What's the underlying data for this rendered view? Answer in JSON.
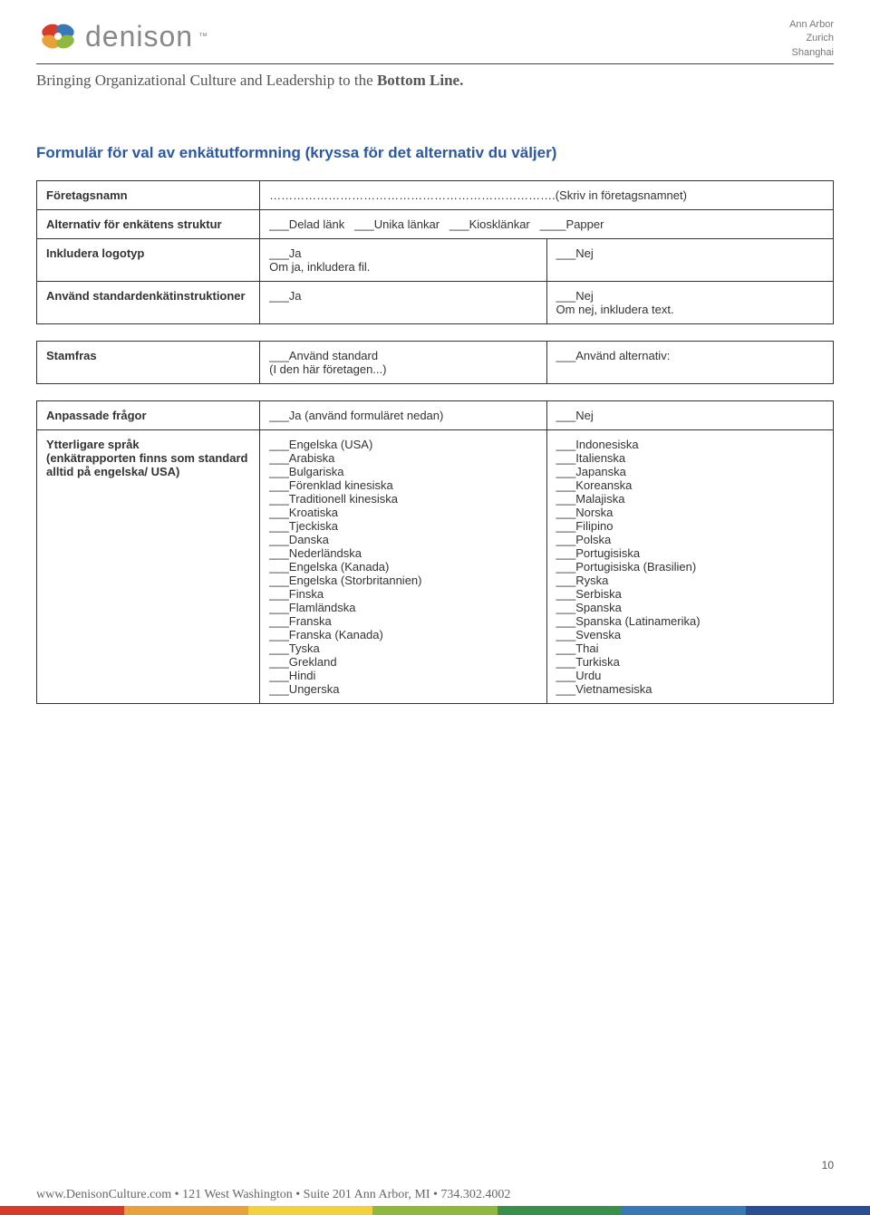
{
  "header": {
    "brand": "denison",
    "locations": [
      "Ann Arbor",
      "Zurich",
      "Shanghai"
    ],
    "tagline_prefix": "Bringing Organizational Culture and Leadership to the ",
    "tagline_bold": "Bottom Line."
  },
  "title": "Formulär för val av enkätutformning (kryssa för det alternativ du väljer)",
  "rows": {
    "company_label": "Företagsnamn",
    "company_value": "……………………………………………………………….(Skriv in företagsnamnet)",
    "struct_label": "Alternativ för enkätens struktur",
    "struct_opts": [
      "___Delad länk",
      "___Unika länkar",
      "___Kiosklänkar",
      "____Papper"
    ],
    "logo_label": "Inkludera logotyp",
    "logo_yes": "___Ja",
    "logo_yes_sub": "Om ja, inkludera fil.",
    "logo_no": "___Nej",
    "instr_label": "Använd standardenkätinstruktioner",
    "instr_yes": "___Ja",
    "instr_no": "___Nej",
    "instr_no_sub": "Om nej, inkludera text.",
    "stem_label": "Stamfras",
    "stem_std": "___Använd standard",
    "stem_std_sub": "(I den här företagen...)",
    "stem_alt": "___Använd alternativ:",
    "custq_label": "Anpassade frågor",
    "custq_yes": "___Ja (använd formuläret nedan)",
    "custq_no": "___Nej",
    "lang_label": "Ytterligare språk (enkätrapporten finns som standard alltid på engelska/ USA)",
    "lang_col1": [
      "___Engelska (USA)",
      "___Arabiska",
      "___Bulgariska",
      "___Förenklad kinesiska",
      "___Traditionell kinesiska",
      "___Kroatiska",
      "___Tjeckiska",
      "___Danska",
      "___Nederländska",
      "___Engelska (Kanada)",
      "___Engelska (Storbritannien)",
      "___Finska",
      "___Flamländska",
      "___Franska",
      "___Franska (Kanada)",
      "___Tyska",
      "___Grekland",
      "___Hindi",
      "___Ungerska"
    ],
    "lang_col2": [
      "___Indonesiska",
      "___Italienska",
      "___Japanska",
      "___Koreanska",
      "___Malajiska",
      "___Norska",
      "___Filipino",
      "___Polska",
      "___Portugisiska",
      "___Portugisiska (Brasilien)",
      "___Ryska",
      "___Serbiska",
      "___Spanska",
      "___Spanska (Latinamerika)",
      "___Svenska",
      "___Thai",
      "___Turkiska",
      "___Urdu",
      "___Vietnamesiska"
    ]
  },
  "page_number": "10",
  "footer_text": "www.DenisonCulture.com • 121 West Washington • Suite 201 Ann Arbor, MI • 734.302.4002",
  "stripe_colors": [
    "#d93b2b",
    "#e9a13b",
    "#f2d13c",
    "#8fb93e",
    "#3a8f4a",
    "#3a77b7",
    "#2a4e93"
  ],
  "logo_colors": {
    "red": "#d93b2b",
    "orange": "#e9a13b",
    "green": "#8fb93e",
    "blue": "#3a77b7"
  }
}
